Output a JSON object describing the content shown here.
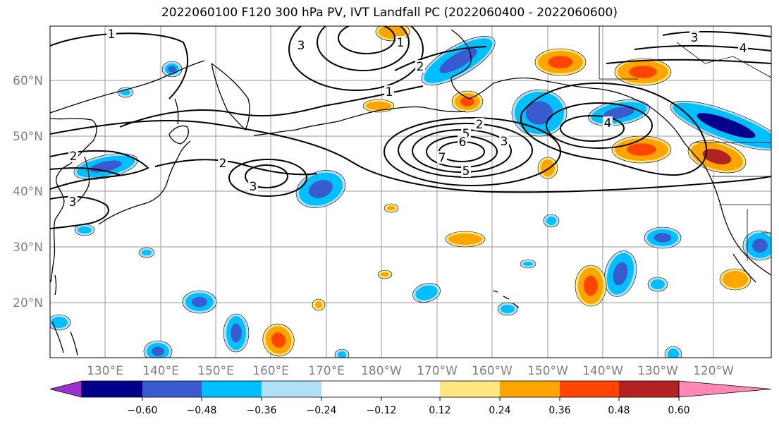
{
  "title": "2022060100 F120 300 hPa PV, IVT Landfall PC (2022060400 - 2022060600)",
  "lat_labels": [
    "60°N",
    "50°N",
    "40°N",
    "30°N",
    "20°N"
  ],
  "lon_labels": [
    "130°E",
    "140°E",
    "150°E",
    "160°E",
    "170°E",
    "180°W",
    "170°W",
    "160°W",
    "150°W",
    "140°W",
    "130°W",
    "120°W"
  ],
  "colorbar": {
    "colors": [
      "#9932cc",
      "#00008b",
      "#3a5bd0",
      "#00bfff",
      "#b0e0f8",
      "#ffffff",
      "#ffffff",
      "#ffe680",
      "#ffa500",
      "#ff4500",
      "#b22222",
      "#ff88b4"
    ],
    "tick_labels": [
      "−0.60",
      "−0.48",
      "−0.36",
      "−0.24",
      "−0.12",
      "0.12",
      "0.24",
      "0.36",
      "0.48",
      "0.60"
    ]
  },
  "contour_labels": [
    "1",
    "1",
    "2",
    "2",
    "2",
    "2",
    "3",
    "3",
    "3",
    "3",
    "3",
    "4",
    "4",
    "5",
    "5",
    "6",
    "7",
    "1"
  ]
}
